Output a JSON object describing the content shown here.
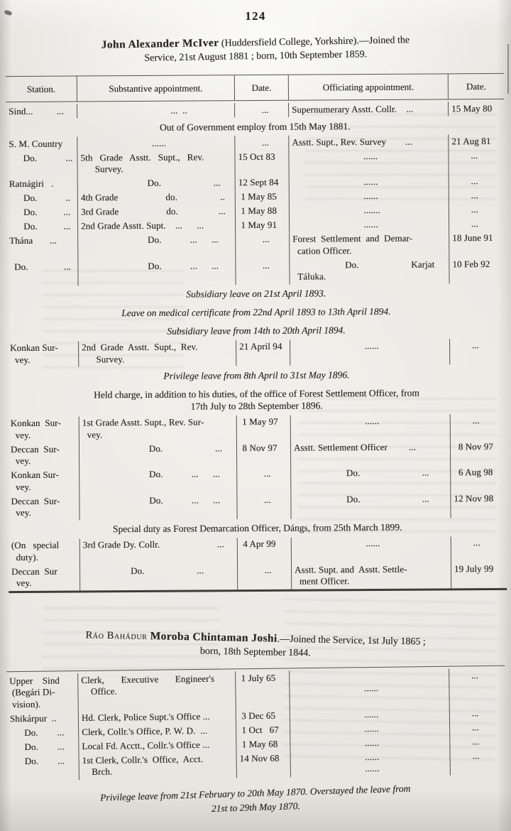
{
  "page": {
    "number": "124"
  },
  "entries": [
    {
      "name": "John Alexander McIver",
      "heading_rest": " (Huddersfield College, Yorkshire).—Joined the",
      "heading_line2": "Service, 21st August 1881 ; born, 10th September 1859.",
      "table": {
        "headers": [
          "Station.",
          "Substantive appointment.",
          "Date.",
          "Officiating appointment.",
          "Date."
        ],
        "rows": [
          {
            "cells": [
              "Sind...          ...",
              "                                      ...  ..",
              "          ...",
              "Supernumerary Asstt. Collr.    ...",
              "15 May 80"
            ]
          },
          {
            "note": [
              "Out of Government employ from 15th May 1881."
            ],
            "style": "roman"
          },
          {
            "cells": [
              "S. M. Country",
              "                              ......",
              "          ...",
              "Asstt. Supt., Rev. Survey        ...",
              "21 Aug 81"
            ]
          },
          {
            "cells": [
              "      Do.            ...",
              "5th   Grade   Asstt.   Supt.,   Rev.\n      Survey.",
              "15 Oct 83",
              "                              ......",
              "        ..."
            ]
          },
          {
            "cells": [
              "Ratnágiri   .",
              "                            Do.                      ...",
              "12 Sept 84",
              "                              ......",
              "        ..."
            ]
          },
          {
            "cells": [
              "      Do.            ..",
              "4th Grade                    do.                  ..",
              " 1 May 85",
              "                              ......",
              "        ..."
            ]
          },
          {
            "cells": [
              "      Do.           ...",
              "3rd Grade                    do.                 ...",
              " 1 May 88",
              "                              .......",
              "        ..."
            ]
          },
          {
            "cells": [
              "      Do.           ...",
              "2nd Grade Asstt. Supt.    ...      ...",
              " 1 May 91",
              "                              ......",
              "        ..."
            ]
          },
          {
            "cells": [
              "Thána       ...",
              "                            Do.            ...      ...",
              "          ...",
              "Forest  Settlement  and  Demar-\n  cation Officer.",
              "18 June 91"
            ]
          },
          {
            "cells": [
              "  Do.               ...",
              "                            Do.            ...      ...",
              "          ...",
              "                      Do.                      Karjat\n  Táluka.",
              "10 Feb 92"
            ]
          },
          {
            "note": [
              "Subsidiary leave on 21st April 1893."
            ],
            "style": "italic"
          },
          {
            "note": [
              "Leave on medical certificate from 22nd April 1893 to 13th April 1894."
            ],
            "style": "italic"
          },
          {
            "note": [
              "Subsidiary leave from 14th to 20th April 1894."
            ],
            "style": "italic"
          },
          {
            "cells": [
              "Konkan Sur-\n  vey.",
              "2nd  Grade  Asstt.  Supt.,  Rev.\n      Survey.",
              "21 April 94",
              "                              ......",
              "        ..."
            ]
          },
          {
            "note": [
              "Privilege leave from 8th April to 31st May 1896."
            ],
            "style": "italic"
          },
          {
            "note": [
              "Held charge, in addition to his duties, of the office of Forest Settlement Officer, from",
              "17th July to 28th September 1896."
            ],
            "style": "roman"
          },
          {
            "cells": [
              "Konkan  Sur-\n  vey.",
              "1st Grade Asstt. Supt., Rev. Sur-\n  vey.",
              " 1 May 97",
              "                              ......",
              "        ..."
            ]
          },
          {
            "cells": [
              "Deccan  Sur-\n  vey.",
              "                            Do.                      ...",
              " 8 Nov 97",
              "Asstt. Settlement Officer         ...",
              "  8 Nov 97"
            ]
          },
          {
            "cells": [
              "Konkan Sur-\n  vey.",
              "                            Do.            ...      ...",
              "          ...",
              "                      Do.                          ...",
              "  6 Aug 98"
            ]
          },
          {
            "cells": [
              "Deccan  Sur-\n  vey.",
              "                            Do.            ...      ...",
              "          ...",
              "                      Do.                          ...",
              "12 Nov 98"
            ]
          },
          {
            "note": [
              "Special duty as Forest Demarcation Officer, Dángs, from 25th March 1899."
            ],
            "style": "roman"
          },
          {
            "cells": [
              "(On   special\n  duty).",
              "3rd Grade Dy. Collr.                        ...",
              " 4 Apr 99",
              "                              ......",
              "        ..."
            ]
          },
          {
            "cells": [
              "Deccan  Sur\n  vey.",
              "                    Do.                      ...",
              "          ...",
              "Asstt. Supt. and  Asstt. Settle-\n  ment Officer.",
              "19 July 99"
            ]
          }
        ]
      }
    },
    {
      "title_prefix": "Ráo Bahádur ",
      "name": "Moroba Chintaman Joshi",
      "heading_rest": ".—Joined the Service, 1st July 1865 ;",
      "heading_line2": "born, 18th September 1844.",
      "table": {
        "rows": [
          {
            "cells": [
              "Upper    Sind\n (Begári Di-\n vision).",
              "Clerk,       Executive       Engineer's\n    Office.",
              " 1 July 65",
              "\n                              ......",
              "        ..."
            ]
          },
          {
            "cells": [
              "Shikárpur  ..",
              "Hd. Clerk, Police Supt.'s Office ...",
              " 3 Dec 65",
              "                              ......",
              "        ..."
            ]
          },
          {
            "cells": [
              "      Do.        ...",
              "Clerk, Collr.'s Office, P. W. D.  ...",
              " 1 Oct   67",
              "                              ......",
              "        ..."
            ]
          },
          {
            "cells": [
              "      Do.        ...",
              "Local Fd. Acctt., Collr.'s Office ...",
              " 1 May 68",
              "                              ......",
              "        ..."
            ]
          },
          {
            "cells": [
              "      Do.        ...",
              "1st Clerk, Collr.'s  Office,  Acct.\n    Brch.",
              "14 Nov 68",
              "                              ......\n                              ......",
              "        ..."
            ]
          }
        ]
      }
    }
  ],
  "footer": {
    "line1": "Privilege leave from 21st February to 20th May 1870.    Overstayed the leave from",
    "line2": "21st to 29th May 1870."
  }
}
